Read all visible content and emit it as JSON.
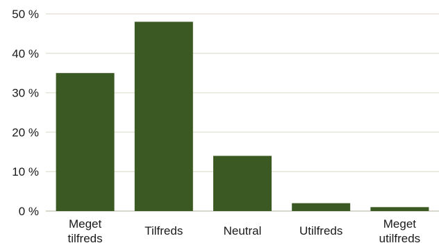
{
  "chart_data": {
    "type": "bar",
    "categories": [
      [
        "Meget",
        "tilfreds"
      ],
      [
        "Tilfreds"
      ],
      [
        "Neutral"
      ],
      [
        "Utilfreds"
      ],
      [
        "Meget",
        "utilfreds"
      ]
    ],
    "values": [
      35,
      48,
      14,
      2,
      1
    ],
    "ylim": [
      0,
      50
    ],
    "yticks": [
      0,
      10,
      20,
      30,
      40,
      50
    ],
    "ytick_labels": [
      "0 %",
      "10 %",
      "20 %",
      "30 %",
      "40 %",
      "50 %"
    ],
    "grid": true,
    "bar_color": "#3b5a23",
    "grid_color": "#e6e4d8",
    "axis_color": "#d9d7cb"
  }
}
